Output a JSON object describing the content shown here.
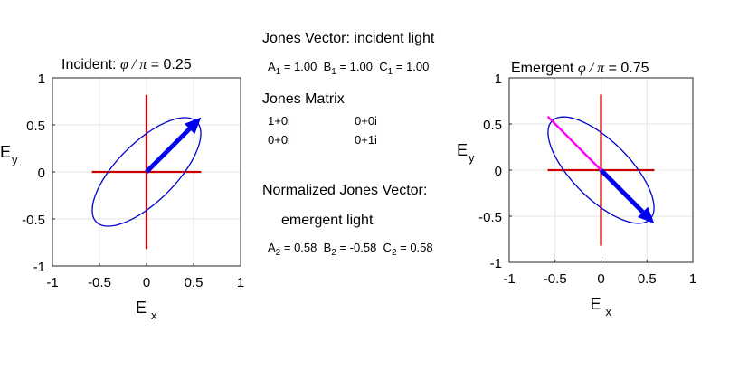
{
  "chart_data": [
    {
      "type": "scatter",
      "title_prefix": "Incident:",
      "title_phi_label": "φ / π",
      "title_eq": "=",
      "title_value": "0.25",
      "xlabel": "E",
      "xlabel_sub": "x",
      "ylabel": "E",
      "ylabel_sub": "y",
      "xlim": [
        -1,
        1
      ],
      "ylim": [
        -1,
        1
      ],
      "xticks": [
        "-1",
        "-0.5",
        "0",
        "0.5",
        "1"
      ],
      "yticks": [
        "1",
        "0.5",
        "0",
        "-0.5",
        "-1"
      ],
      "grid": true,
      "ellipse": {
        "a": 0.577,
        "c": 0.577,
        "phase_over_pi": 0.25,
        "color": "#0000cc"
      },
      "cross": {
        "h_extent": [
          -0.58,
          0.58
        ],
        "v_extent": [
          -0.82,
          0.82
        ],
        "color": "#cc0000"
      },
      "line": null,
      "arrow": {
        "from": [
          0,
          0
        ],
        "to": [
          0.58,
          0.58
        ],
        "color": "#0000ee"
      }
    },
    {
      "type": "scatter",
      "title_prefix": "Emergent",
      "title_phi_label": "φ / π",
      "title_eq": "=",
      "title_value": "0.75",
      "xlabel": "E",
      "xlabel_sub": "x",
      "ylabel": "E",
      "ylabel_sub": "y",
      "xlim": [
        -1,
        1
      ],
      "ylim": [
        -1,
        1
      ],
      "xticks": [
        "-1",
        "-0.5",
        "0",
        "0.5",
        "1"
      ],
      "yticks": [
        "1",
        "0.5",
        "0",
        "-0.5",
        "-1"
      ],
      "grid": true,
      "ellipse": {
        "a": 0.577,
        "c": 0.577,
        "phase_over_pi": 0.75,
        "color": "#0000cc"
      },
      "cross": {
        "h_extent": [
          -0.58,
          0.58
        ],
        "v_extent": [
          -0.82,
          0.82
        ],
        "color": "#cc0000"
      },
      "line": {
        "from": [
          -0.58,
          0.58
        ],
        "to": [
          0,
          0
        ],
        "color": "#ff00ff"
      },
      "arrow": {
        "from": [
          0,
          0
        ],
        "to": [
          0.58,
          -0.58
        ],
        "color": "#0000ee"
      }
    }
  ],
  "center": {
    "incident_heading": "Jones Vector: incident light",
    "incident_values": [
      {
        "label": "A",
        "sub": "1",
        "value": "= 1.00"
      },
      {
        "label": "B",
        "sub": "1",
        "value": "= 1.00"
      },
      {
        "label": "C",
        "sub": "1",
        "value": "= 1.00"
      }
    ],
    "matrix_heading": "Jones Matrix",
    "matrix": [
      [
        "1+0i",
        "0+0i"
      ],
      [
        "0+0i",
        "0+1i"
      ]
    ],
    "normalized_heading": "Normalized Jones Vector:",
    "emergent_heading": "emergent light",
    "emergent_values": [
      {
        "label": "A",
        "sub": "2",
        "value": "= 0.58"
      },
      {
        "label": "B",
        "sub": "2",
        "value": "= -0.58"
      },
      {
        "label": "C",
        "sub": "2",
        "value": "= 0.58"
      }
    ]
  }
}
